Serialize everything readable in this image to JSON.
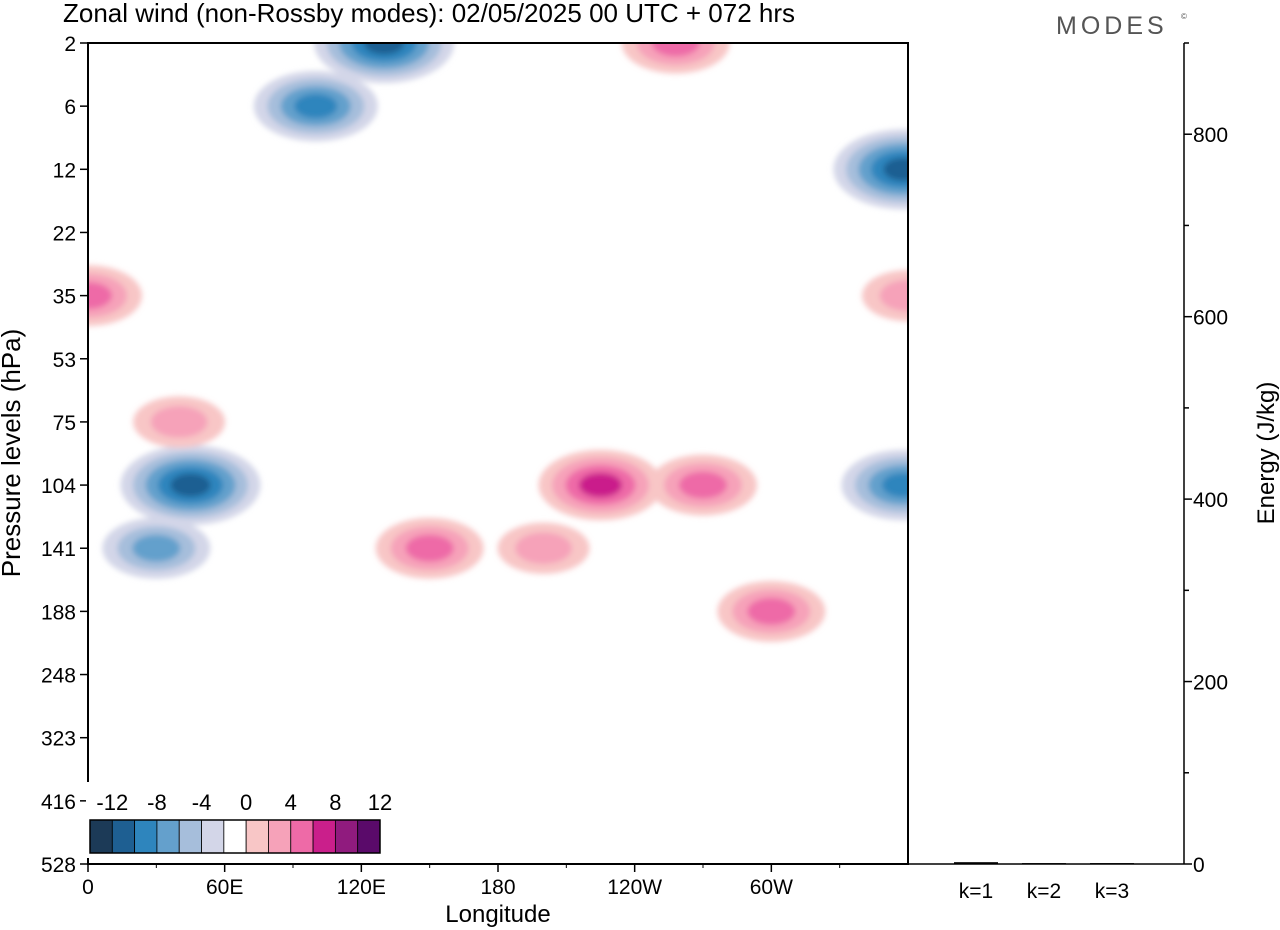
{
  "title": "Zonal wind (non-Rossby modes):  02/05/2025  00 UTC  + 072 hrs",
  "brand": "MODES",
  "brand_mark": "©",
  "colors": {
    "background": "#ffffff",
    "axis": "#000000",
    "neg_12": "#1c3a57",
    "neg_10": "#1e5f92",
    "neg_8": "#2e85bd",
    "neg_6": "#64a0cc",
    "neg_4": "#a6bedb",
    "neg_2": "#d3d6e8",
    "pos_2": "#f8c6c6",
    "pos_4": "#f6a2b9",
    "pos_6": "#ee6aa7",
    "pos_8": "#ca1f8b",
    "pos_10": "#901b7e",
    "pos_12": "#5a0a6a"
  },
  "chart_data": [
    {
      "type": "heatmap",
      "title": "Zonal wind (non-Rossby modes):  02/05/2025  00 UTC  + 072 hrs",
      "xlabel": "Longitude",
      "ylabel": "Pressure levels (hPa)",
      "x_ticks": [
        "0",
        "60E",
        "120E",
        "180",
        "120W",
        "60W"
      ],
      "x_tick_values": [
        0,
        60,
        120,
        180,
        240,
        300
      ],
      "xlim": [
        0,
        360
      ],
      "y_ticks": [
        "2",
        "6",
        "12",
        "22",
        "35",
        "53",
        "75",
        "104",
        "141",
        "188",
        "248",
        "323",
        "416",
        "528"
      ],
      "colorbar": {
        "labels": [
          "-12",
          "-8",
          "-4",
          "0",
          "4",
          "8",
          "12"
        ],
        "levels": [
          -14,
          -12,
          -10,
          -8,
          -6,
          -4,
          -2,
          2,
          4,
          6,
          8,
          10,
          12,
          14
        ]
      },
      "features": [
        {
          "lon": 45,
          "level": "104",
          "value": -10
        },
        {
          "lon": 30,
          "level": "141",
          "value": -6
        },
        {
          "lon": 100,
          "level": "6",
          "value": -8
        },
        {
          "lon": 130,
          "level": "2",
          "value": -10
        },
        {
          "lon": 358,
          "level": "12",
          "value": -10
        },
        {
          "lon": 358,
          "level": "104",
          "value": -8
        },
        {
          "lon": 0,
          "level": "35",
          "value": 6
        },
        {
          "lon": 40,
          "level": "75",
          "value": 4
        },
        {
          "lon": 150,
          "level": "141",
          "value": 6
        },
        {
          "lon": 200,
          "level": "141",
          "value": 4
        },
        {
          "lon": 225,
          "level": "104",
          "value": 8
        },
        {
          "lon": 270,
          "level": "104",
          "value": 6
        },
        {
          "lon": 300,
          "level": "188",
          "value": 6
        },
        {
          "lon": 258,
          "level": "2",
          "value": 6
        },
        {
          "lon": 360,
          "level": "35",
          "value": 4
        }
      ]
    },
    {
      "type": "bar",
      "categories": [
        "k=1",
        "k=2",
        "k=3"
      ],
      "values": [
        2,
        1,
        1
      ],
      "ylabel": "Energy (J/kg)",
      "ylim": [
        0,
        900
      ],
      "y_ticks": [
        0,
        200,
        400,
        600,
        800
      ]
    }
  ]
}
